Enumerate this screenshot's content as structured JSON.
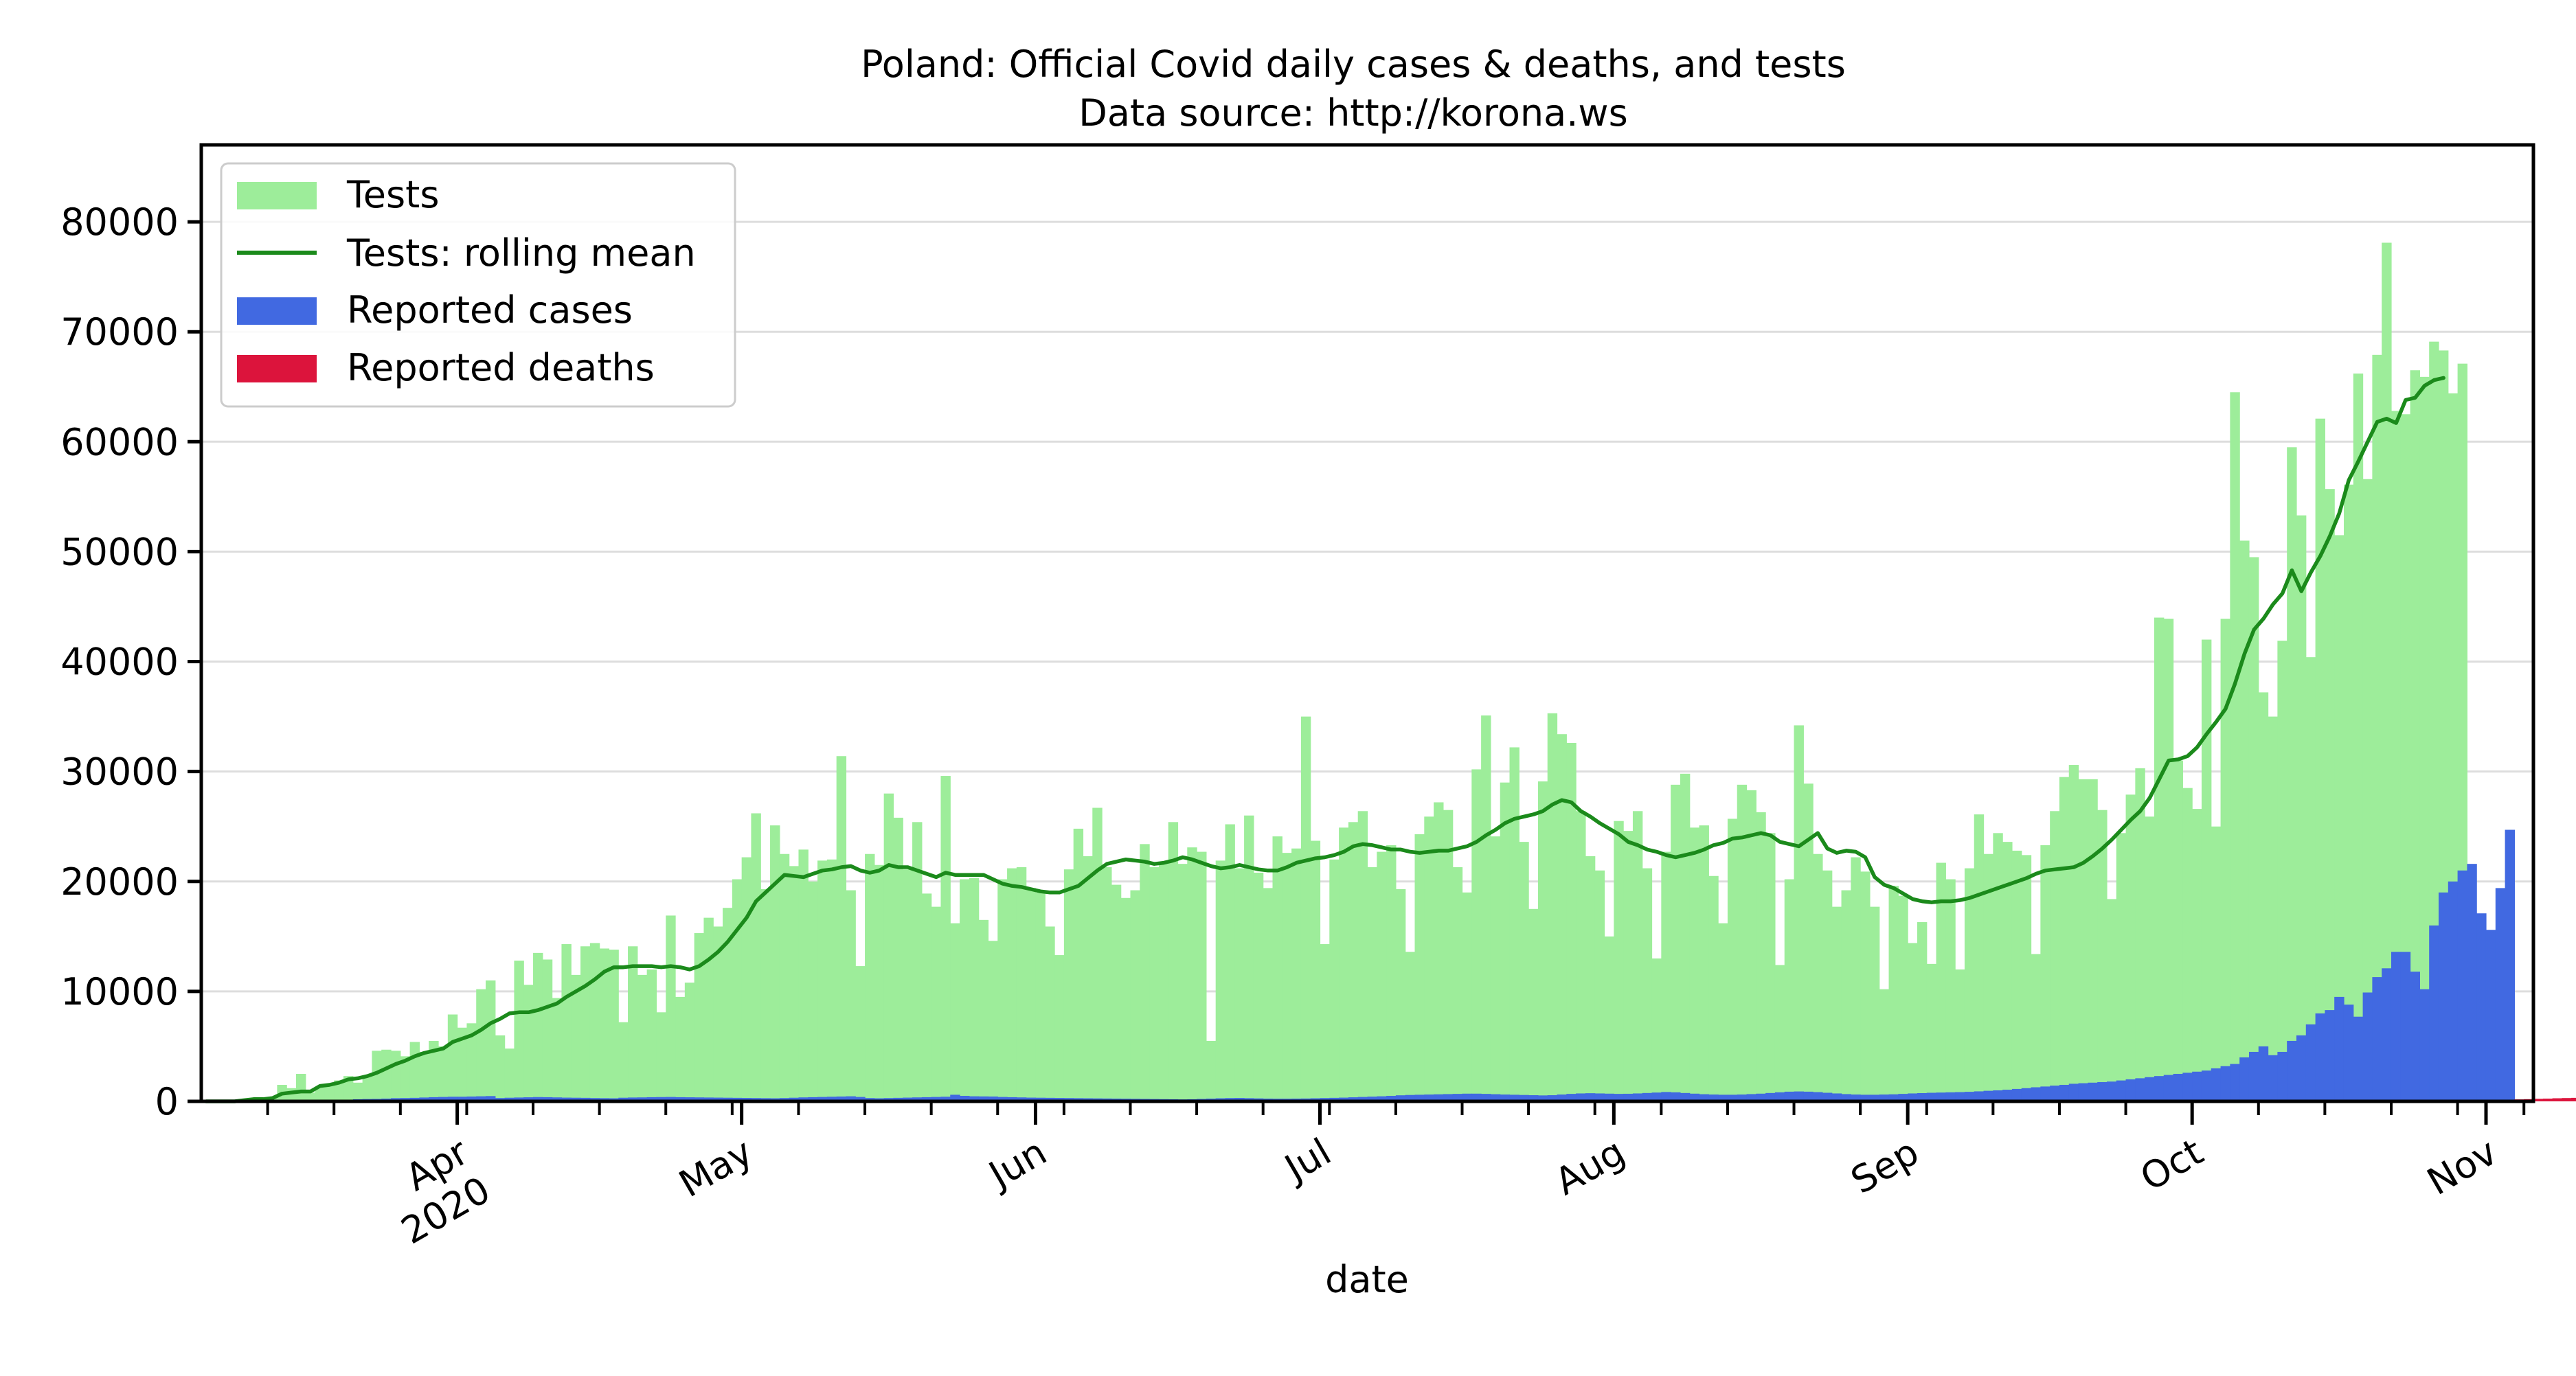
{
  "chart_data": {
    "type": "bar",
    "title": "Poland: Official Covid daily cases & deaths, and tests",
    "subtitle": "Data source: http://korona.ws",
    "xlabel": "date",
    "ylabel": "",
    "x_start": "2020-03-05",
    "x_end": "2020-11-06",
    "ylim": [
      0,
      87000
    ],
    "yticks": [
      0,
      10000,
      20000,
      30000,
      40000,
      50000,
      60000,
      70000,
      80000
    ],
    "grid": "horizontal",
    "legend_position": "top-left",
    "month_ticks": [
      {
        "date": "2020-04-01",
        "label": "Apr",
        "sublabel": "2020"
      },
      {
        "date": "2020-05-01",
        "label": "May",
        "sublabel": ""
      },
      {
        "date": "2020-06-01",
        "label": "Jun",
        "sublabel": ""
      },
      {
        "date": "2020-07-01",
        "label": "Jul",
        "sublabel": ""
      },
      {
        "date": "2020-08-01",
        "label": "Aug",
        "sublabel": ""
      },
      {
        "date": "2020-09-01",
        "label": "Sep",
        "sublabel": ""
      },
      {
        "date": "2020-10-01",
        "label": "Oct",
        "sublabel": ""
      },
      {
        "date": "2020-11-01",
        "label": "Nov",
        "sublabel": ""
      }
    ],
    "series": [
      {
        "name": "Tests",
        "kind": "bar",
        "color": "#9ded9a",
        "values": [
          0,
          0,
          0,
          0,
          100,
          200,
          300,
          400,
          1500,
          1200,
          2500,
          800,
          1300,
          1500,
          1900,
          2300,
          1700,
          2300,
          4600,
          4700,
          4600,
          4100,
          5400,
          4500,
          5500,
          5000,
          7900,
          6700,
          7100,
          10200,
          11000,
          6000,
          4800,
          12800,
          10600,
          13500,
          12900,
          9400,
          14300,
          11500,
          14100,
          14400,
          13900,
          13800,
          7200,
          14100,
          11500,
          12000,
          8100,
          16900,
          9500,
          10800,
          15300,
          16700,
          15900,
          17600,
          20200,
          22200,
          26200,
          19300,
          25100,
          22500,
          21400,
          22900,
          20000,
          21900,
          22000,
          31400,
          19200,
          12300,
          22500,
          21500,
          28000,
          25800,
          21100,
          25400,
          18900,
          17700,
          29600,
          16200,
          20200,
          20300,
          16500,
          14600,
          20200,
          21200,
          21300,
          19400,
          19000,
          15900,
          13300,
          21100,
          24800,
          22300,
          26700,
          21300,
          19700,
          18500,
          19200,
          23400,
          21300,
          21600,
          25400,
          21600,
          23100,
          22700,
          5500,
          21900,
          25200,
          21200,
          26000,
          20800,
          19400,
          24100,
          22600,
          23000,
          35000,
          23700,
          14300,
          22000,
          24900,
          25400,
          26400,
          21300,
          22700,
          23300,
          19300,
          13600,
          24300,
          25900,
          27200,
          26500,
          21300,
          19000,
          30200,
          35100,
          24100,
          29000,
          32200,
          23600,
          17500,
          29100,
          35300,
          33400,
          32600,
          26400,
          22300,
          21000,
          15000,
          25500,
          24600,
          26400,
          21200,
          13000,
          22700,
          28800,
          29800,
          24900,
          25100,
          20500,
          16200,
          25700,
          28800,
          28300,
          26300,
          24400,
          12400,
          20200,
          34200,
          28900,
          22500,
          21000,
          17700,
          19200,
          22200,
          20900,
          17700,
          10200,
          19600,
          18700,
          14400,
          16300,
          12500,
          21700,
          20200,
          12000,
          21200,
          26100,
          22500,
          24400,
          23600,
          22800,
          22400,
          13400,
          23300,
          26400,
          29500,
          30600,
          29300,
          29300,
          26500,
          18400,
          24400,
          27900,
          30300,
          25900,
          44000,
          43900,
          31000,
          28500,
          26600,
          42000,
          25000,
          43900,
          64500,
          51000,
          49500,
          37200,
          35000,
          41900,
          59500,
          53300,
          40400,
          62100,
          55700,
          51500,
          56100,
          66200,
          56600,
          67900,
          78100,
          62800,
          62500,
          66500,
          65900,
          69100,
          68300,
          64400,
          67100
        ]
      },
      {
        "name": "Tests: rolling mean",
        "kind": "line",
        "color": "#1b8a1b",
        "values": [
          0,
          0,
          0,
          0,
          100,
          200,
          200,
          300,
          700,
          800,
          900,
          900,
          1400,
          1500,
          1700,
          2000,
          2100,
          2300,
          2600,
          3000,
          3400,
          3700,
          4100,
          4400,
          4600,
          4800,
          5400,
          5700,
          6000,
          6500,
          7100,
          7500,
          8000,
          8100,
          8100,
          8300,
          8600,
          8900,
          9500,
          10000,
          10500,
          11100,
          11800,
          12200,
          12200,
          12300,
          12300,
          12300,
          12200,
          12300,
          12200,
          12000,
          12300,
          12900,
          13600,
          14500,
          15600,
          16700,
          18200,
          19000,
          19800,
          20600,
          20500,
          20400,
          20700,
          21000,
          21100,
          21300,
          21400,
          21000,
          20800,
          21000,
          21500,
          21300,
          21300,
          21000,
          20700,
          20400,
          20800,
          20600,
          20600,
          20600,
          20600,
          20200,
          19800,
          19600,
          19500,
          19300,
          19100,
          19000,
          19000,
          19300,
          19600,
          20300,
          21000,
          21600,
          21800,
          22000,
          21900,
          21800,
          21600,
          21700,
          21900,
          22200,
          22000,
          21700,
          21400,
          21200,
          21300,
          21500,
          21300,
          21100,
          21000,
          21000,
          21300,
          21700,
          21900,
          22100,
          22200,
          22400,
          22700,
          23200,
          23400,
          23300,
          23100,
          22900,
          22900,
          22700,
          22600,
          22700,
          22800,
          22800,
          23000,
          23200,
          23600,
          24200,
          24700,
          25300,
          25700,
          25900,
          26100,
          26400,
          27000,
          27400,
          27200,
          26400,
          25900,
          25300,
          24800,
          24300,
          23600,
          23300,
          22900,
          22700,
          22400,
          22200,
          22400,
          22600,
          22900,
          23300,
          23500,
          23900,
          24000,
          24200,
          24400,
          24200,
          23600,
          23400,
          23200,
          23800,
          24400,
          23000,
          22600,
          22800,
          22700,
          22200,
          20400,
          19700,
          19400,
          18900,
          18400,
          18200,
          18100,
          18200,
          18200,
          18300,
          18500,
          18800,
          19100,
          19400,
          19700,
          20000,
          20300,
          20700,
          21000,
          21100,
          21200,
          21300,
          21700,
          22300,
          23000,
          23800,
          24700,
          25600,
          26400,
          27600,
          29300,
          31000,
          31100,
          31400,
          32200,
          33400,
          34500,
          35700,
          38000,
          40700,
          42900,
          43900,
          45200,
          46200,
          48300,
          46400,
          48100,
          49600,
          51400,
          53500,
          56500,
          58200,
          60000,
          61800,
          62100,
          61700,
          63800,
          64000,
          65100,
          65600,
          65800
        ]
      },
      {
        "name": "Reported cases",
        "kind": "bar",
        "color": "#4169e1",
        "values": [
          0,
          0,
          0,
          0,
          0,
          0,
          10,
          15,
          20,
          35,
          50,
          65,
          70,
          90,
          115,
          150,
          190,
          210,
          220,
          250,
          290,
          300,
          320,
          350,
          380,
          400,
          420,
          420,
          440,
          460,
          480,
          300,
          330,
          350,
          370,
          390,
          380,
          360,
          340,
          330,
          320,
          300,
          290,
          280,
          330,
          350,
          360,
          380,
          390,
          400,
          380,
          370,
          360,
          350,
          340,
          330,
          320,
          310,
          300,
          290,
          280,
          300,
          330,
          360,
          380,
          400,
          420,
          440,
          460,
          400,
          300,
          280,
          300,
          320,
          340,
          360,
          380,
          400,
          420,
          600,
          500,
          460,
          450,
          440,
          400,
          380,
          360,
          340,
          330,
          320,
          310,
          300,
          290,
          280,
          270,
          260,
          250,
          240,
          230,
          220,
          210,
          200,
          190,
          180,
          190,
          220,
          250,
          280,
          300,
          310,
          290,
          270,
          250,
          240,
          240,
          250,
          260,
          280,
          300,
          320,
          340,
          370,
          400,
          430,
          460,
          500,
          550,
          580,
          600,
          620,
          640,
          660,
          680,
          700,
          700,
          680,
          650,
          620,
          600,
          580,
          560,
          540,
          560,
          620,
          680,
          720,
          740,
          720,
          700,
          680,
          690,
          720,
          760,
          800,
          850,
          820,
          760,
          700,
          650,
          620,
          600,
          600,
          620,
          660,
          700,
          760,
          820,
          880,
          900,
          880,
          840,
          780,
          720,
          660,
          620,
          600,
          600,
          620,
          640,
          680,
          720,
          750,
          780,
          800,
          820,
          840,
          870,
          910,
          960,
          1000,
          1060,
          1130,
          1200,
          1280,
          1350,
          1430,
          1500,
          1600,
          1650,
          1700,
          1750,
          1800,
          1900,
          2000,
          2100,
          2200,
          2300,
          2400,
          2500,
          2600,
          2700,
          2800,
          3000,
          3200,
          3400,
          4000,
          4500,
          5000,
          4200,
          4500,
          5500,
          6000,
          7000,
          8000,
          8300,
          9500,
          8800,
          7700,
          9900,
          11300,
          12100,
          13600,
          13600,
          11800,
          10200,
          16000,
          19000,
          20000,
          21000,
          21600,
          17100,
          15600,
          19400,
          24700
        ]
      },
      {
        "name": "Reported deaths",
        "kind": "bar",
        "color": "#dc143c",
        "values": [
          0,
          0,
          0,
          0,
          0,
          0,
          0,
          0,
          0,
          0,
          0,
          0,
          0,
          0,
          0,
          0,
          0,
          0,
          0,
          0,
          0,
          0,
          0,
          0,
          0,
          0,
          0,
          0,
          0,
          0,
          0,
          0,
          0,
          0,
          0,
          0,
          0,
          0,
          0,
          0,
          0,
          0,
          0,
          0,
          0,
          0,
          0,
          0,
          0,
          0,
          0,
          0,
          0,
          0,
          0,
          0,
          0,
          0,
          0,
          0,
          0,
          0,
          0,
          0,
          0,
          0,
          0,
          0,
          0,
          0,
          0,
          0,
          0,
          0,
          0,
          0,
          0,
          0,
          0,
          0,
          0,
          0,
          0,
          0,
          0,
          0,
          0,
          0,
          0,
          0,
          0,
          0,
          0,
          0,
          0,
          0,
          0,
          0,
          0,
          0,
          0,
          0,
          0,
          0,
          0,
          0,
          0,
          0,
          0,
          0,
          0,
          0,
          0,
          0,
          0,
          0,
          0,
          0,
          0,
          0,
          0,
          0,
          0,
          0,
          0,
          0,
          0,
          0,
          0,
          0,
          0,
          0,
          0,
          0,
          0,
          0,
          0,
          0,
          0,
          0,
          0,
          0,
          0,
          0,
          0,
          0,
          0,
          0,
          0,
          0,
          0,
          0,
          0,
          0,
          0,
          0,
          0,
          0,
          0,
          0,
          0,
          0,
          0,
          0,
          0,
          0,
          0,
          0,
          0,
          0,
          0,
          0,
          0,
          0,
          0,
          0,
          0,
          0,
          0,
          0,
          0,
          0,
          0,
          0,
          0,
          0,
          0,
          0,
          0,
          0,
          0,
          0,
          0,
          0,
          0,
          0,
          0,
          0,
          0,
          0,
          0,
          0,
          0,
          0,
          0,
          0,
          0,
          0,
          0,
          0,
          0,
          0,
          0,
          0,
          0,
          0,
          0,
          0,
          0,
          0,
          0,
          0,
          0,
          0,
          0,
          0,
          0,
          0,
          0,
          0,
          0,
          0,
          0,
          0,
          0,
          0,
          0,
          0,
          50,
          60,
          70,
          100,
          120,
          150,
          180,
          200,
          230,
          250,
          280,
          300,
          320,
          350,
          370,
          390,
          420,
          445
        ]
      }
    ]
  }
}
